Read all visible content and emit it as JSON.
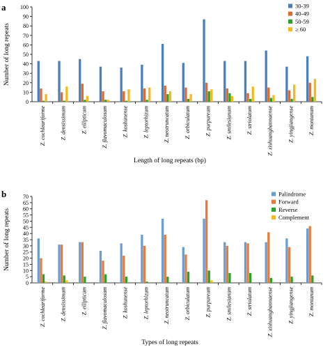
{
  "chart_data": [
    {
      "type": "bar",
      "panel_label": "a",
      "ylabel": "Number of long repeats",
      "xlabel": "Length of long repeats (bp)",
      "ylim": [
        0,
        100
      ],
      "yticks": [
        0,
        10,
        20,
        30,
        40,
        50,
        60,
        70,
        80,
        90,
        100
      ],
      "legend_position": "top-right",
      "categories": [
        "Z. cochleariforme",
        "Z. densissimum",
        "Z. ellipticum",
        "Z. flavomaculosum",
        "Z. koshunense",
        "Z. leptorhizum",
        "Z. neotruncatum",
        "Z. orbiculatum",
        "Z. purpureum",
        "Z. smilesianum",
        "Z. striolatum",
        "Z. xishuangbannaense",
        "Z. yingjiangense",
        "Z. montanum"
      ],
      "series": [
        {
          "name": "30-39",
          "color": "#4a7fbd",
          "values": [
            43,
            43,
            45,
            37,
            36,
            39,
            61,
            41,
            87,
            43,
            43,
            54,
            37,
            48
          ]
        },
        {
          "name": "40-49",
          "color": "#e0692c",
          "values": [
            14,
            10,
            19,
            11,
            11,
            14,
            17,
            15,
            20,
            14,
            9,
            15,
            12,
            20
          ]
        },
        {
          "name": "50-59",
          "color": "#27a32b",
          "values": [
            1,
            1,
            2,
            2,
            1,
            2,
            8,
            3,
            11,
            9,
            3,
            4,
            3,
            5
          ]
        },
        {
          "name": "≥ 60",
          "color": "#f5b91b",
          "values": [
            8,
            16,
            6,
            2,
            13,
            15,
            11,
            8,
            13,
            6,
            16,
            7,
            18,
            24
          ]
        }
      ]
    },
    {
      "type": "bar",
      "panel_label": "b",
      "ylabel": "Number of long repeats",
      "xlabel": "Types of  long repeats",
      "ylim": [
        0,
        70
      ],
      "yticks": [
        0,
        5,
        10,
        15,
        20,
        25,
        30,
        35,
        40,
        45,
        50,
        55,
        60,
        65,
        70
      ],
      "legend_position": "top-right",
      "categories": [
        "Z. cochleariforme",
        "Z. densissimum",
        "Z. ellipticum",
        "Z. flavomaculosum",
        "Z. koshunense",
        "Z. leptorhizum",
        "Z. neotruncatum",
        "Z. orbiculatum",
        "Z. purpureum",
        "Z. smilesianum",
        "Z. striolatum",
        "Z. xishuangbannaense",
        "Z. yingjiangense",
        "Z. montanum"
      ],
      "series": [
        {
          "name": "Palindrome",
          "color": "#6a9ed3",
          "values": [
            36,
            31,
            33,
            26,
            32,
            39,
            52,
            29,
            52,
            33,
            33,
            33,
            36,
            44
          ]
        },
        {
          "name": "Forward",
          "color": "#e87b3c",
          "values": [
            20,
            31,
            33,
            18,
            22,
            30,
            39,
            23,
            67,
            30,
            32,
            41,
            29,
            46
          ]
        },
        {
          "name": "Reverse",
          "color": "#27a32b",
          "values": [
            7,
            6,
            5,
            7,
            5,
            1,
            5,
            9,
            10,
            8,
            8,
            4,
            5,
            6
          ]
        },
        {
          "name": "Complement",
          "color": "#f5b91b",
          "values": [
            1,
            2,
            0,
            0,
            0,
            0,
            0,
            0,
            2,
            0,
            0,
            0,
            0,
            0
          ]
        }
      ]
    }
  ]
}
